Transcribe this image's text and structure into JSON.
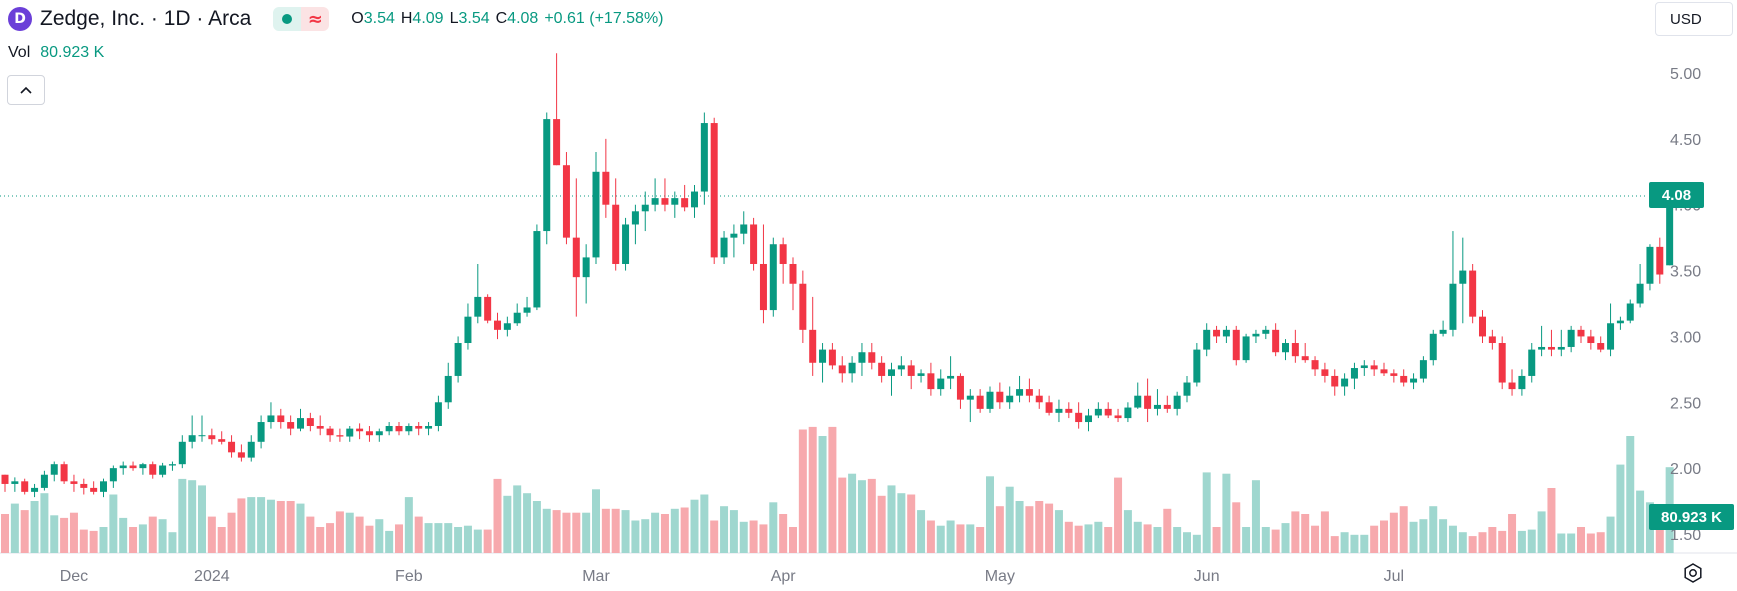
{
  "header": {
    "symbol_title": "Zedge, Inc. · 1D · Arca",
    "logo_letter": "D",
    "approx_symbol": "≈",
    "ohlc": {
      "open_label": "O",
      "open": "3.54",
      "high_label": "H",
      "high": "4.09",
      "low_label": "L",
      "low": "3.54",
      "close_label": "C",
      "close": "4.08",
      "change": "+0.61 (+17.58%)"
    },
    "volume_label": "Vol",
    "volume_value": "80.923 K",
    "currency": "USD"
  },
  "colors": {
    "up": "#089981",
    "down": "#f23645",
    "up_volume": "#9fd7cf",
    "down_volume": "#f7a9ad"
  },
  "icons": {
    "collapse": "chevron-up-icon",
    "settings": "settings-icon",
    "logo": "zedge-logo-icon"
  },
  "price_tag": "4.08",
  "volume_tag": "80.923 K",
  "chart_data": {
    "type": "candlestick",
    "y_ticks": [
      "5.00",
      "4.50",
      "4.00",
      "3.50",
      "3.00",
      "2.50",
      "2.00",
      "1.50"
    ],
    "y_tick_values": [
      5.0,
      4.5,
      4.0,
      3.5,
      3.0,
      2.5,
      2.0,
      1.5
    ],
    "ylim": [
      1.37,
      5.2
    ],
    "last_price": 4.08,
    "x_labels": [
      {
        "label": "Dec",
        "index": 7
      },
      {
        "label": "2024",
        "index": 21
      },
      {
        "label": "Feb",
        "index": 41
      },
      {
        "label": "Mar",
        "index": 60
      },
      {
        "label": "Apr",
        "index": 79
      },
      {
        "label": "May",
        "index": 101
      },
      {
        "label": "Jun",
        "index": 122
      },
      {
        "label": "Jul",
        "index": 141
      }
    ],
    "ohlc": [
      [
        1.95,
        1.95,
        1.82,
        1.88
      ],
      [
        1.88,
        1.93,
        1.82,
        1.9
      ],
      [
        1.9,
        1.92,
        1.8,
        1.82
      ],
      [
        1.82,
        1.88,
        1.78,
        1.85
      ],
      [
        1.85,
        1.98,
        1.83,
        1.95
      ],
      [
        1.95,
        2.05,
        1.9,
        2.03
      ],
      [
        2.03,
        2.05,
        1.88,
        1.9
      ],
      [
        1.9,
        1.95,
        1.82,
        1.88
      ],
      [
        1.88,
        1.92,
        1.8,
        1.85
      ],
      [
        1.85,
        1.9,
        1.8,
        1.82
      ],
      [
        1.82,
        1.92,
        1.78,
        1.9
      ],
      [
        1.9,
        2.02,
        1.85,
        2.0
      ],
      [
        2.0,
        2.05,
        1.95,
        2.02
      ],
      [
        2.02,
        2.05,
        1.98,
        2.0
      ],
      [
        2.0,
        2.04,
        1.95,
        2.03
      ],
      [
        2.03,
        2.05,
        1.92,
        1.95
      ],
      [
        1.95,
        2.04,
        1.93,
        2.02
      ],
      [
        2.02,
        2.05,
        1.98,
        2.03
      ],
      [
        2.03,
        2.25,
        2.0,
        2.2
      ],
      [
        2.2,
        2.4,
        2.15,
        2.25
      ],
      [
        2.25,
        2.4,
        2.2,
        2.25
      ],
      [
        2.25,
        2.3,
        2.18,
        2.22
      ],
      [
        2.22,
        2.28,
        2.18,
        2.2
      ],
      [
        2.2,
        2.25,
        2.08,
        2.12
      ],
      [
        2.12,
        2.18,
        2.05,
        2.08
      ],
      [
        2.08,
        2.25,
        2.05,
        2.2
      ],
      [
        2.2,
        2.4,
        2.15,
        2.35
      ],
      [
        2.35,
        2.5,
        2.3,
        2.4
      ],
      [
        2.4,
        2.45,
        2.3,
        2.35
      ],
      [
        2.35,
        2.4,
        2.25,
        2.3
      ],
      [
        2.3,
        2.45,
        2.28,
        2.38
      ],
      [
        2.38,
        2.42,
        2.28,
        2.32
      ],
      [
        2.32,
        2.4,
        2.25,
        2.3
      ],
      [
        2.3,
        2.32,
        2.2,
        2.25
      ],
      [
        2.25,
        2.3,
        2.2,
        2.24
      ],
      [
        2.24,
        2.32,
        2.2,
        2.3
      ],
      [
        2.3,
        2.34,
        2.22,
        2.28
      ],
      [
        2.28,
        2.32,
        2.2,
        2.25
      ],
      [
        2.25,
        2.3,
        2.2,
        2.28
      ],
      [
        2.28,
        2.35,
        2.25,
        2.32
      ],
      [
        2.32,
        2.35,
        2.25,
        2.28
      ],
      [
        2.28,
        2.34,
        2.25,
        2.32
      ],
      [
        2.32,
        2.35,
        2.25,
        2.3
      ],
      [
        2.3,
        2.35,
        2.25,
        2.32
      ],
      [
        2.32,
        2.55,
        2.28,
        2.5
      ],
      [
        2.5,
        2.8,
        2.45,
        2.7
      ],
      [
        2.7,
        3.0,
        2.65,
        2.95
      ],
      [
        2.95,
        3.25,
        2.9,
        3.15
      ],
      [
        3.15,
        3.55,
        3.1,
        3.3
      ],
      [
        3.3,
        3.32,
        3.1,
        3.12
      ],
      [
        3.12,
        3.18,
        2.98,
        3.05
      ],
      [
        3.05,
        3.15,
        3.0,
        3.1
      ],
      [
        3.1,
        3.25,
        3.08,
        3.18
      ],
      [
        3.18,
        3.3,
        3.15,
        3.22
      ],
      [
        3.22,
        3.85,
        3.2,
        3.8
      ],
      [
        3.8,
        4.7,
        3.7,
        4.65
      ],
      [
        4.65,
        5.15,
        4.3,
        4.3
      ],
      [
        4.3,
        4.4,
        3.7,
        3.75
      ],
      [
        3.75,
        4.2,
        3.15,
        3.45
      ],
      [
        3.45,
        3.7,
        3.25,
        3.6
      ],
      [
        3.6,
        4.4,
        3.55,
        4.25
      ],
      [
        4.25,
        4.5,
        3.9,
        4.0
      ],
      [
        4.0,
        4.2,
        3.5,
        3.55
      ],
      [
        3.55,
        3.9,
        3.5,
        3.85
      ],
      [
        3.85,
        4.0,
        3.7,
        3.95
      ],
      [
        3.95,
        4.1,
        3.8,
        4.0
      ],
      [
        4.0,
        4.2,
        3.95,
        4.05
      ],
      [
        4.05,
        4.2,
        3.95,
        4.0
      ],
      [
        4.0,
        4.1,
        3.9,
        4.05
      ],
      [
        4.05,
        4.15,
        3.95,
        3.98
      ],
      [
        3.98,
        4.15,
        3.9,
        4.1
      ],
      [
        4.1,
        4.7,
        4.0,
        4.62
      ],
      [
        4.62,
        4.66,
        3.55,
        3.6
      ],
      [
        3.6,
        3.8,
        3.55,
        3.75
      ],
      [
        3.75,
        3.85,
        3.6,
        3.78
      ],
      [
        3.78,
        3.95,
        3.7,
        3.85
      ],
      [
        3.85,
        3.9,
        3.5,
        3.55
      ],
      [
        3.55,
        3.85,
        3.1,
        3.2
      ],
      [
        3.2,
        3.75,
        3.15,
        3.7
      ],
      [
        3.7,
        3.75,
        3.4,
        3.55
      ],
      [
        3.55,
        3.6,
        3.2,
        3.4
      ],
      [
        3.4,
        3.5,
        2.95,
        3.05
      ],
      [
        3.05,
        3.3,
        2.7,
        2.8
      ],
      [
        2.8,
        2.95,
        2.65,
        2.9
      ],
      [
        2.9,
        2.95,
        2.75,
        2.78
      ],
      [
        2.78,
        2.85,
        2.65,
        2.72
      ],
      [
        2.72,
        2.85,
        2.65,
        2.8
      ],
      [
        2.8,
        2.95,
        2.7,
        2.88
      ],
      [
        2.88,
        2.95,
        2.75,
        2.8
      ],
      [
        2.8,
        2.85,
        2.65,
        2.7
      ],
      [
        2.7,
        2.8,
        2.55,
        2.75
      ],
      [
        2.75,
        2.85,
        2.7,
        2.78
      ],
      [
        2.78,
        2.82,
        2.6,
        2.7
      ],
      [
        2.7,
        2.75,
        2.65,
        2.72
      ],
      [
        2.72,
        2.8,
        2.55,
        2.6
      ],
      [
        2.6,
        2.75,
        2.55,
        2.68
      ],
      [
        2.68,
        2.85,
        2.6,
        2.7
      ],
      [
        2.7,
        2.72,
        2.45,
        2.52
      ],
      [
        2.52,
        2.6,
        2.35,
        2.55
      ],
      [
        2.55,
        2.6,
        2.42,
        2.45
      ],
      [
        2.45,
        2.62,
        2.42,
        2.58
      ],
      [
        2.58,
        2.65,
        2.45,
        2.5
      ],
      [
        2.5,
        2.62,
        2.45,
        2.55
      ],
      [
        2.55,
        2.7,
        2.5,
        2.6
      ],
      [
        2.6,
        2.68,
        2.5,
        2.55
      ],
      [
        2.55,
        2.6,
        2.45,
        2.5
      ],
      [
        2.5,
        2.55,
        2.4,
        2.42
      ],
      [
        2.42,
        2.52,
        2.35,
        2.45
      ],
      [
        2.45,
        2.5,
        2.38,
        2.42
      ],
      [
        2.42,
        2.5,
        2.3,
        2.35
      ],
      [
        2.35,
        2.45,
        2.28,
        2.4
      ],
      [
        2.4,
        2.5,
        2.38,
        2.45
      ],
      [
        2.45,
        2.5,
        2.38,
        2.4
      ],
      [
        2.4,
        2.45,
        2.35,
        2.38
      ],
      [
        2.38,
        2.5,
        2.35,
        2.46
      ],
      [
        2.46,
        2.65,
        2.45,
        2.55
      ],
      [
        2.55,
        2.68,
        2.35,
        2.45
      ],
      [
        2.45,
        2.6,
        2.4,
        2.48
      ],
      [
        2.48,
        2.55,
        2.42,
        2.45
      ],
      [
        2.45,
        2.58,
        2.4,
        2.55
      ],
      [
        2.55,
        2.7,
        2.5,
        2.65
      ],
      [
        2.65,
        2.95,
        2.62,
        2.9
      ],
      [
        2.9,
        3.1,
        2.85,
        3.05
      ],
      [
        3.05,
        3.08,
        2.95,
        3.0
      ],
      [
        3.0,
        3.08,
        2.95,
        3.05
      ],
      [
        3.05,
        3.08,
        2.78,
        2.82
      ],
      [
        2.82,
        3.02,
        2.8,
        3.0
      ],
      [
        3.0,
        3.05,
        2.95,
        3.02
      ],
      [
        3.02,
        3.08,
        2.98,
        3.05
      ],
      [
        3.05,
        3.1,
        2.85,
        2.88
      ],
      [
        2.88,
        2.98,
        2.82,
        2.95
      ],
      [
        2.95,
        3.05,
        2.8,
        2.85
      ],
      [
        2.85,
        2.95,
        2.8,
        2.82
      ],
      [
        2.82,
        2.85,
        2.7,
        2.75
      ],
      [
        2.75,
        2.8,
        2.65,
        2.7
      ],
      [
        2.7,
        2.75,
        2.55,
        2.62
      ],
      [
        2.62,
        2.72,
        2.55,
        2.68
      ],
      [
        2.68,
        2.8,
        2.6,
        2.76
      ],
      [
        2.76,
        2.82,
        2.7,
        2.78
      ],
      [
        2.78,
        2.82,
        2.7,
        2.75
      ],
      [
        2.75,
        2.8,
        2.7,
        2.72
      ],
      [
        2.72,
        2.75,
        2.65,
        2.7
      ],
      [
        2.7,
        2.75,
        2.62,
        2.65
      ],
      [
        2.65,
        2.72,
        2.6,
        2.68
      ],
      [
        2.68,
        2.85,
        2.65,
        2.82
      ],
      [
        2.82,
        3.05,
        2.78,
        3.02
      ],
      [
        3.02,
        3.12,
        3.0,
        3.05
      ],
      [
        3.05,
        3.8,
        3.0,
        3.4
      ],
      [
        3.4,
        3.75,
        3.1,
        3.5
      ],
      [
        3.5,
        3.55,
        3.1,
        3.15
      ],
      [
        3.15,
        3.2,
        2.95,
        3.0
      ],
      [
        3.0,
        3.05,
        2.9,
        2.95
      ],
      [
        2.95,
        3.0,
        2.6,
        2.65
      ],
      [
        2.65,
        2.75,
        2.55,
        2.6
      ],
      [
        2.6,
        2.75,
        2.55,
        2.7
      ],
      [
        2.7,
        2.95,
        2.65,
        2.9
      ],
      [
        2.9,
        3.08,
        2.85,
        2.92
      ],
      [
        2.92,
        3.05,
        2.85,
        2.9
      ],
      [
        2.9,
        3.05,
        2.85,
        2.92
      ],
      [
        2.92,
        3.08,
        2.88,
        3.05
      ],
      [
        3.05,
        3.08,
        2.95,
        3.0
      ],
      [
        3.0,
        3.05,
        2.9,
        2.95
      ],
      [
        2.95,
        3.0,
        2.88,
        2.9
      ],
      [
        2.9,
        3.25,
        2.85,
        3.1
      ],
      [
        3.1,
        3.15,
        3.05,
        3.12
      ],
      [
        3.12,
        3.28,
        3.1,
        3.25
      ],
      [
        3.25,
        3.55,
        3.22,
        3.4
      ],
      [
        3.4,
        3.7,
        3.35,
        3.68
      ],
      [
        3.68,
        3.75,
        3.4,
        3.47
      ],
      [
        3.54,
        4.09,
        3.54,
        4.08
      ]
    ],
    "volume": [
      0.3,
      0.38,
      0.33,
      0.4,
      0.46,
      0.29,
      0.27,
      0.31,
      0.18,
      0.17,
      0.2,
      0.45,
      0.27,
      0.2,
      0.22,
      0.28,
      0.26,
      0.16,
      0.57,
      0.56,
      0.52,
      0.28,
      0.2,
      0.31,
      0.42,
      0.43,
      0.43,
      0.41,
      0.4,
      0.4,
      0.38,
      0.28,
      0.2,
      0.23,
      0.32,
      0.31,
      0.28,
      0.21,
      0.26,
      0.17,
      0.22,
      0.43,
      0.28,
      0.23,
      0.23,
      0.23,
      0.2,
      0.21,
      0.18,
      0.18,
      0.57,
      0.44,
      0.52,
      0.46,
      0.4,
      0.34,
      0.33,
      0.31,
      0.31,
      0.31,
      0.49,
      0.34,
      0.34,
      0.33,
      0.25,
      0.26,
      0.31,
      0.3,
      0.34,
      0.35,
      0.41,
      0.45,
      0.25,
      0.36,
      0.33,
      0.24,
      0.25,
      0.22,
      0.39,
      0.3,
      0.2,
      0.95,
      0.97,
      0.9,
      0.97,
      0.58,
      0.61,
      0.56,
      0.57,
      0.44,
      0.52,
      0.46,
      0.45,
      0.33,
      0.25,
      0.21,
      0.25,
      0.22,
      0.22,
      0.2,
      0.59,
      0.36,
      0.51,
      0.4,
      0.36,
      0.4,
      0.38,
      0.33,
      0.24,
      0.21,
      0.22,
      0.24,
      0.2,
      0.58,
      0.33,
      0.24,
      0.22,
      0.2,
      0.34,
      0.2,
      0.16,
      0.14,
      0.62,
      0.2,
      0.61,
      0.39,
      0.2,
      0.56,
      0.2,
      0.18,
      0.23,
      0.32,
      0.3,
      0.21,
      0.32,
      0.13,
      0.16,
      0.14,
      0.14,
      0.21,
      0.25,
      0.31,
      0.36,
      0.24,
      0.26,
      0.36,
      0.26,
      0.21,
      0.16,
      0.13,
      0.16,
      0.2,
      0.17,
      0.3,
      0.17,
      0.18,
      0.32,
      0.5,
      0.15,
      0.15,
      0.2,
      0.15,
      0.16,
      0.28,
      0.68,
      0.9,
      0.48,
      0.39,
      0.31,
      0.66,
      0.77,
      0.32,
      0.35,
      0.35,
      0.36,
      0.34,
      0.32,
      0.25,
      0.34,
      0.16,
      0.2,
      0.18,
      0.4,
      0.46,
      0.38,
      0.33,
      0.29,
      0.38,
      0.3,
      0.25,
      0.28,
      0.24,
      0.2,
      0.28
    ]
  }
}
